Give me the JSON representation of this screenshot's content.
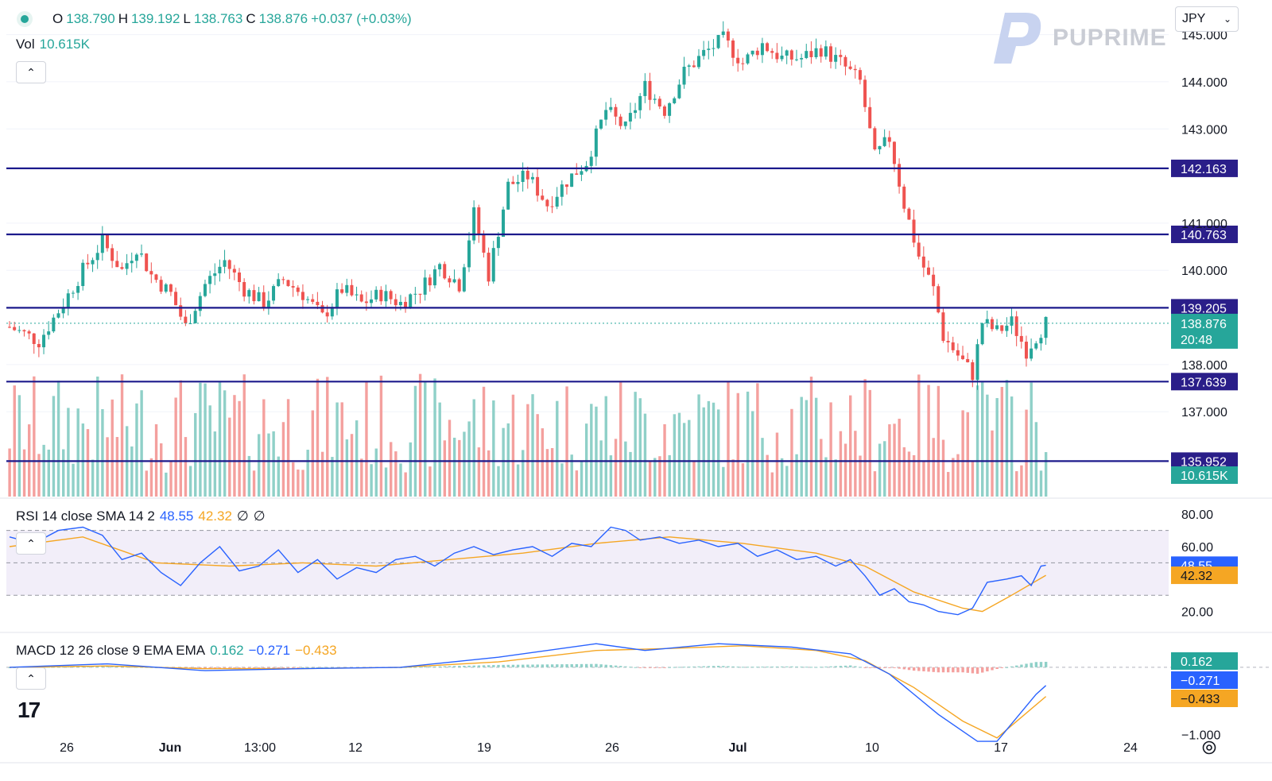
{
  "brand": {
    "name": "PUPRIME",
    "currency_selector": "JPY",
    "platform_icon": "tradingview-logo-icon"
  },
  "legend": {
    "open_label": "O",
    "open": "138.790",
    "high_label": "H",
    "high": "139.192",
    "low_label": "L",
    "low": "138.763",
    "close_label": "C",
    "close": "138.876",
    "change": "+0.037 (+0.03%)",
    "vol_label": "Vol",
    "vol": "10.615K",
    "rsi_title": "RSI 14 close SMA 14 2",
    "rsi_value": "48.55",
    "rsi_ma": "42.32",
    "rsi_extra1": "∅",
    "rsi_extra2": "∅",
    "macd_title": "MACD 12 26 close 9 EMA EMA",
    "macd_hist": "0.162",
    "macd_line": "−0.271",
    "macd_signal": "−0.433"
  },
  "colors": {
    "up": "#26a69a",
    "down": "#ef5350",
    "vol_up": "#8fd0c8",
    "vol_down": "#f4a09e",
    "level_line": "#1c1a8c",
    "rsi_line": "#2962ff",
    "rsi_ma": "#f5a623",
    "rsi_band": "#ede7f6",
    "macd_line": "#2962ff",
    "signal_line": "#f5a623",
    "label_bg": "#2a1e89"
  },
  "chart_data": {
    "type": "candlestick",
    "symbol_quote": "JPY",
    "y_range": [
      135.2,
      145.6
    ],
    "price_ticks": [
      "145.000",
      "144.000",
      "143.000",
      "141.000",
      "140.000",
      "138.000",
      "137.000"
    ],
    "horizontal_levels": [
      142.163,
      140.763,
      139.205,
      137.639,
      135.952
    ],
    "horizontal_level_labels": [
      "142.163",
      "140.763",
      "139.205",
      "137.639",
      "135.952"
    ],
    "last_price": {
      "value": 138.876,
      "label": "138.876",
      "countdown": "20:48"
    },
    "volume_label": "10.615K",
    "x_ticks": [
      "26",
      "Jun",
      "13:00",
      "12",
      "19",
      "26",
      "Jul",
      "10",
      "17",
      "24"
    ],
    "price_path": [
      [
        0,
        138.8
      ],
      [
        12,
        138.5
      ],
      [
        22,
        139.3
      ],
      [
        30,
        140.0
      ],
      [
        38,
        140.6
      ],
      [
        46,
        140.0
      ],
      [
        52,
        140.5
      ],
      [
        58,
        139.9
      ],
      [
        66,
        139.5
      ],
      [
        72,
        138.8
      ],
      [
        80,
        139.7
      ],
      [
        88,
        140.2
      ],
      [
        96,
        139.6
      ],
      [
        104,
        139.3
      ],
      [
        112,
        139.8
      ],
      [
        120,
        139.5
      ],
      [
        128,
        139.0
      ],
      [
        136,
        139.6
      ],
      [
        144,
        139.3
      ],
      [
        152,
        139.5
      ],
      [
        160,
        139.3
      ],
      [
        168,
        139.6
      ],
      [
        176,
        140.1
      ],
      [
        184,
        139.7
      ],
      [
        190,
        141.2
      ],
      [
        196,
        139.9
      ],
      [
        204,
        141.8
      ],
      [
        212,
        142.0
      ],
      [
        220,
        141.4
      ],
      [
        228,
        141.9
      ],
      [
        236,
        142.3
      ],
      [
        244,
        143.4
      ],
      [
        252,
        143.0
      ],
      [
        260,
        143.9
      ],
      [
        268,
        143.4
      ],
      [
        276,
        144.2
      ],
      [
        284,
        144.6
      ],
      [
        292,
        144.9
      ],
      [
        300,
        144.4
      ],
      [
        308,
        144.8
      ],
      [
        316,
        144.5
      ],
      [
        324,
        144.5
      ],
      [
        332,
        144.7
      ],
      [
        340,
        144.4
      ],
      [
        348,
        144.0
      ],
      [
        354,
        142.4
      ],
      [
        360,
        142.8
      ],
      [
        366,
        141.4
      ],
      [
        372,
        140.3
      ],
      [
        378,
        139.6
      ],
      [
        382,
        138.6
      ],
      [
        388,
        138.2
      ],
      [
        394,
        137.8
      ],
      [
        398,
        138.9
      ],
      [
        404,
        138.7
      ],
      [
        410,
        138.9
      ],
      [
        416,
        138.3
      ],
      [
        420,
        138.6
      ],
      [
        424,
        138.876
      ]
    ],
    "rsi": {
      "y_ticks": [
        "80.00",
        "60.00",
        "20.00"
      ],
      "bands": [
        30,
        50,
        70
      ],
      "value": 48.55,
      "ma": 42.32,
      "value_label": "48.55",
      "ma_label": "42.32",
      "path": [
        [
          0,
          66
        ],
        [
          10,
          62
        ],
        [
          20,
          70
        ],
        [
          30,
          72
        ],
        [
          38,
          67
        ],
        [
          46,
          52
        ],
        [
          54,
          56
        ],
        [
          62,
          44
        ],
        [
          70,
          36
        ],
        [
          78,
          50
        ],
        [
          86,
          60
        ],
        [
          94,
          45
        ],
        [
          102,
          48
        ],
        [
          110,
          58
        ],
        [
          118,
          44
        ],
        [
          126,
          52
        ],
        [
          134,
          40
        ],
        [
          142,
          47
        ],
        [
          150,
          44
        ],
        [
          158,
          52
        ],
        [
          166,
          54
        ],
        [
          174,
          48
        ],
        [
          182,
          56
        ],
        [
          190,
          60
        ],
        [
          198,
          55
        ],
        [
          206,
          58
        ],
        [
          214,
          60
        ],
        [
          222,
          54
        ],
        [
          230,
          62
        ],
        [
          238,
          60
        ],
        [
          246,
          72
        ],
        [
          252,
          70
        ],
        [
          258,
          64
        ],
        [
          266,
          66
        ],
        [
          274,
          62
        ],
        [
          282,
          64
        ],
        [
          290,
          60
        ],
        [
          298,
          62
        ],
        [
          306,
          54
        ],
        [
          314,
          58
        ],
        [
          322,
          52
        ],
        [
          330,
          54
        ],
        [
          338,
          48
        ],
        [
          344,
          52
        ],
        [
          350,
          42
        ],
        [
          356,
          30
        ],
        [
          362,
          34
        ],
        [
          368,
          26
        ],
        [
          374,
          24
        ],
        [
          380,
          20
        ],
        [
          388,
          18
        ],
        [
          394,
          22
        ],
        [
          400,
          38
        ],
        [
          408,
          40
        ],
        [
          414,
          42
        ],
        [
          418,
          36
        ],
        [
          422,
          48
        ],
        [
          424,
          48.55
        ]
      ],
      "ma_path": [
        [
          0,
          60
        ],
        [
          30,
          66
        ],
        [
          60,
          50
        ],
        [
          90,
          48
        ],
        [
          120,
          50
        ],
        [
          150,
          48
        ],
        [
          180,
          52
        ],
        [
          210,
          56
        ],
        [
          240,
          62
        ],
        [
          270,
          66
        ],
        [
          300,
          62
        ],
        [
          330,
          56
        ],
        [
          350,
          48
        ],
        [
          370,
          32
        ],
        [
          390,
          22
        ],
        [
          398,
          20
        ],
        [
          410,
          30
        ],
        [
          424,
          42.32
        ]
      ]
    },
    "macd": {
      "y_ticks": [
        "−1.000"
      ],
      "y_range": [
        -1.3,
        0.4
      ],
      "hist_label": "0.162",
      "macd_label": "−0.271",
      "signal_label": "−0.433",
      "macd_path": [
        [
          0,
          0.0
        ],
        [
          40,
          0.05
        ],
        [
          80,
          -0.05
        ],
        [
          120,
          -0.02
        ],
        [
          160,
          0.0
        ],
        [
          200,
          0.15
        ],
        [
          240,
          0.35
        ],
        [
          260,
          0.25
        ],
        [
          290,
          0.35
        ],
        [
          320,
          0.3
        ],
        [
          344,
          0.2
        ],
        [
          360,
          -0.1
        ],
        [
          380,
          -0.7
        ],
        [
          396,
          -1.1
        ],
        [
          404,
          -1.1
        ],
        [
          420,
          -0.4
        ],
        [
          424,
          -0.271
        ]
      ],
      "signal_path": [
        [
          0,
          0.0
        ],
        [
          40,
          0.02
        ],
        [
          80,
          -0.02
        ],
        [
          120,
          -0.02
        ],
        [
          160,
          0.0
        ],
        [
          200,
          0.08
        ],
        [
          240,
          0.25
        ],
        [
          270,
          0.28
        ],
        [
          300,
          0.32
        ],
        [
          330,
          0.25
        ],
        [
          350,
          0.1
        ],
        [
          370,
          -0.3
        ],
        [
          390,
          -0.8
        ],
        [
          404,
          -1.05
        ],
        [
          424,
          -0.433
        ]
      ]
    }
  }
}
